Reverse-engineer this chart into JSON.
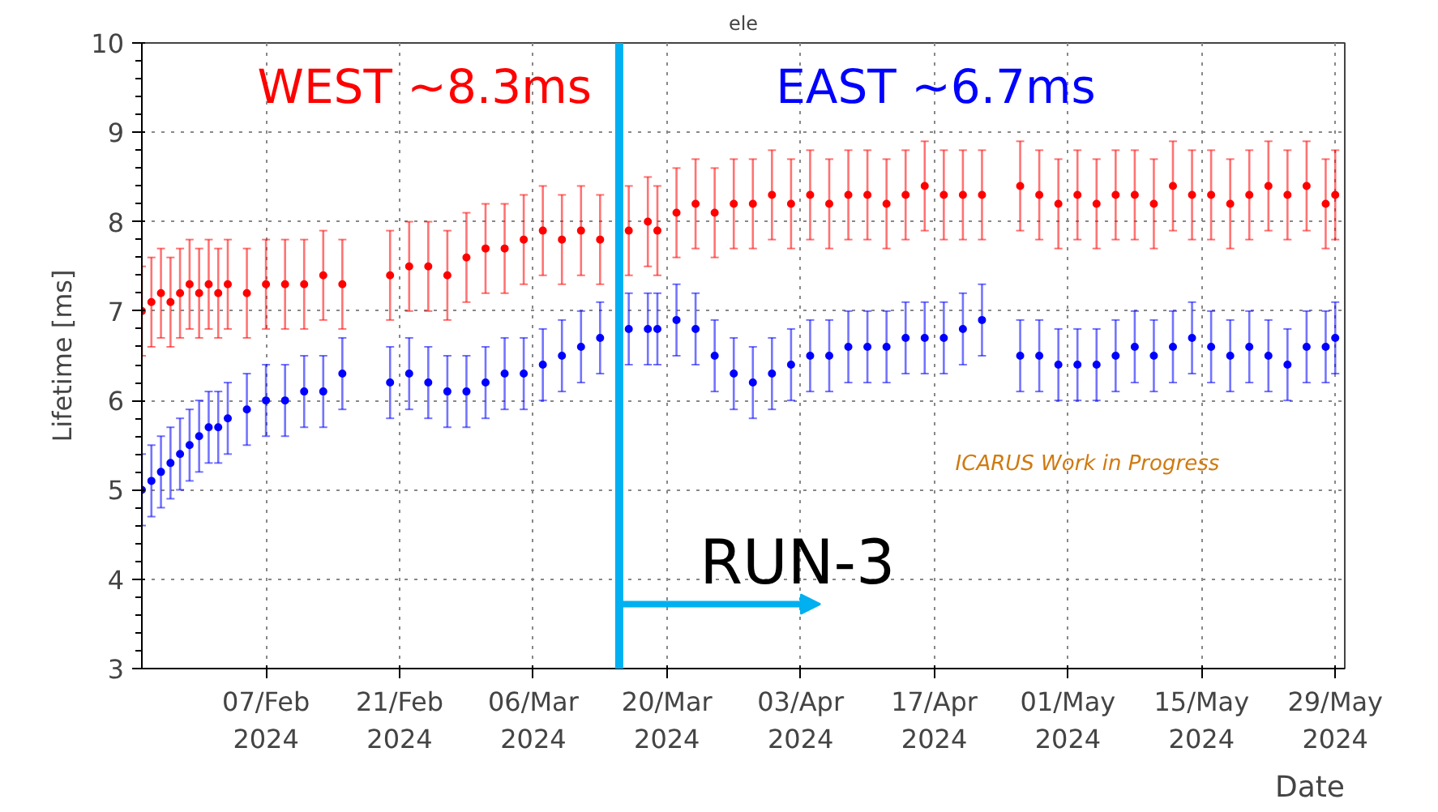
{
  "chart_data": {
    "type": "scatter",
    "title": "ele",
    "xlabel": "Date",
    "ylabel": "Lifetime [ms]",
    "x": [
      "2024-01-25",
      "2024-01-26",
      "2024-01-27",
      "2024-01-28",
      "2024-01-29",
      "2024-01-30",
      "2024-01-31",
      "2024-02-01",
      "2024-02-02",
      "2024-02-03",
      "2024-02-05",
      "2024-02-07",
      "2024-02-09",
      "2024-02-11",
      "2024-02-13",
      "2024-02-15",
      "2024-02-20",
      "2024-02-22",
      "2024-02-24",
      "2024-02-26",
      "2024-02-28",
      "2024-03-01",
      "2024-03-03",
      "2024-03-05",
      "2024-03-07",
      "2024-03-09",
      "2024-03-11",
      "2024-03-13",
      "2024-03-16",
      "2024-03-18",
      "2024-03-19",
      "2024-03-21",
      "2024-03-23",
      "2024-03-25",
      "2024-03-27",
      "2024-03-29",
      "2024-03-31",
      "2024-04-02",
      "2024-04-04",
      "2024-04-06",
      "2024-04-08",
      "2024-04-10",
      "2024-04-12",
      "2024-04-14",
      "2024-04-16",
      "2024-04-18",
      "2024-04-20",
      "2024-04-22",
      "2024-04-26",
      "2024-04-28",
      "2024-04-30",
      "2024-05-02",
      "2024-05-04",
      "2024-05-06",
      "2024-05-08",
      "2024-05-10",
      "2024-05-12",
      "2024-05-14",
      "2024-05-16",
      "2024-05-18",
      "2024-05-20",
      "2024-05-22",
      "2024-05-24",
      "2024-05-26",
      "2024-05-28",
      "2024-05-29"
    ],
    "series": [
      {
        "color": "#ff0000",
        "values": [
          7.0,
          7.1,
          7.2,
          7.1,
          7.2,
          7.3,
          7.2,
          7.3,
          7.2,
          7.3,
          7.2,
          7.3,
          7.3,
          7.3,
          7.4,
          7.3,
          7.4,
          7.5,
          7.5,
          7.4,
          7.6,
          7.7,
          7.7,
          7.8,
          7.9,
          7.8,
          7.9,
          7.8,
          7.9,
          8.0,
          7.9,
          8.1,
          8.2,
          8.1,
          8.2,
          8.2,
          8.3,
          8.2,
          8.3,
          8.2,
          8.3,
          8.3,
          8.2,
          8.3,
          8.4,
          8.3,
          8.3,
          8.3,
          8.4,
          8.3,
          8.2,
          8.3,
          8.2,
          8.3,
          8.3,
          8.2,
          8.4,
          8.3,
          8.3,
          8.2,
          8.3,
          8.4,
          8.3,
          8.4,
          8.2,
          8.3
        ],
        "errors": [
          0.5,
          0.5,
          0.5,
          0.5,
          0.5,
          0.5,
          0.5,
          0.5,
          0.5,
          0.5,
          0.5,
          0.5,
          0.5,
          0.5,
          0.5,
          0.5,
          0.5,
          0.5,
          0.5,
          0.5,
          0.5,
          0.5,
          0.5,
          0.5,
          0.5,
          0.5,
          0.5,
          0.5,
          0.5,
          0.5,
          0.5,
          0.5,
          0.5,
          0.5,
          0.5,
          0.5,
          0.5,
          0.5,
          0.5,
          0.5,
          0.5,
          0.5,
          0.5,
          0.5,
          0.5,
          0.5,
          0.5,
          0.5,
          0.5,
          0.5,
          0.5,
          0.5,
          0.5,
          0.5,
          0.5,
          0.5,
          0.5,
          0.5,
          0.5,
          0.5,
          0.5,
          0.5,
          0.5,
          0.5,
          0.5,
          0.5
        ]
      },
      {
        "color": "#0000ff",
        "values": [
          5.0,
          5.1,
          5.2,
          5.3,
          5.4,
          5.5,
          5.6,
          5.7,
          5.7,
          5.8,
          5.9,
          6.0,
          6.0,
          6.1,
          6.1,
          6.3,
          6.2,
          6.3,
          6.2,
          6.1,
          6.1,
          6.2,
          6.3,
          6.3,
          6.4,
          6.5,
          6.6,
          6.7,
          6.8,
          6.8,
          6.8,
          6.9,
          6.8,
          6.5,
          6.3,
          6.2,
          6.3,
          6.4,
          6.5,
          6.5,
          6.6,
          6.6,
          6.6,
          6.7,
          6.7,
          6.7,
          6.8,
          6.9,
          6.5,
          6.5,
          6.4,
          6.4,
          6.4,
          6.5,
          6.6,
          6.5,
          6.6,
          6.7,
          6.6,
          6.5,
          6.6,
          6.5,
          6.4,
          6.6,
          6.6,
          6.7
        ],
        "errors": [
          0.4,
          0.4,
          0.4,
          0.4,
          0.4,
          0.4,
          0.4,
          0.4,
          0.4,
          0.4,
          0.4,
          0.4,
          0.4,
          0.4,
          0.4,
          0.4,
          0.4,
          0.4,
          0.4,
          0.4,
          0.4,
          0.4,
          0.4,
          0.4,
          0.4,
          0.4,
          0.4,
          0.4,
          0.4,
          0.4,
          0.4,
          0.4,
          0.4,
          0.4,
          0.4,
          0.4,
          0.4,
          0.4,
          0.4,
          0.4,
          0.4,
          0.4,
          0.4,
          0.4,
          0.4,
          0.4,
          0.4,
          0.4,
          0.4,
          0.4,
          0.4,
          0.4,
          0.4,
          0.4,
          0.4,
          0.4,
          0.4,
          0.4,
          0.4,
          0.4,
          0.4,
          0.4,
          0.4,
          0.4,
          0.4,
          0.4
        ]
      }
    ],
    "xlim": [
      "2024-01-25",
      "2024-05-30"
    ],
    "xticks": [
      {
        "value": "2024-02-07",
        "label": "07/Feb\n2024"
      },
      {
        "value": "2024-02-21",
        "label": "21/Feb\n2024"
      },
      {
        "value": "2024-03-06",
        "label": "06/Mar\n2024"
      },
      {
        "value": "2024-03-20",
        "label": "20/Mar\n2024"
      },
      {
        "value": "2024-04-03",
        "label": "03/Apr\n2024"
      },
      {
        "value": "2024-04-17",
        "label": "17/Apr\n2024"
      },
      {
        "value": "2024-05-01",
        "label": "01/May\n2024"
      },
      {
        "value": "2024-05-15",
        "label": "15/May\n2024"
      },
      {
        "value": "2024-05-29",
        "label": "29/May\n2024"
      }
    ],
    "ylim": [
      3,
      10
    ],
    "yticks": [
      3,
      4,
      5,
      6,
      7,
      8,
      9,
      10
    ],
    "grid": true,
    "marker": "circle",
    "ref_lines": [
      {
        "axis": "x",
        "value": "2024-03-15",
        "color": "#00b0f0"
      }
    ],
    "annotations": [
      "WEST ~8.3ms",
      "EAST ~6.7ms",
      "ICARUS Work in Progress",
      "RUN-3"
    ]
  }
}
